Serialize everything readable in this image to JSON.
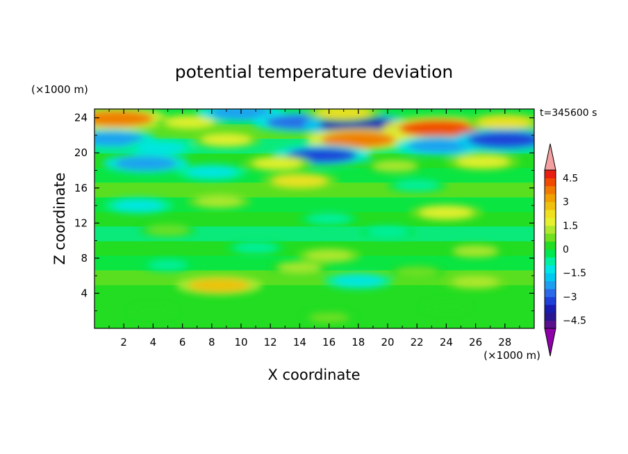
{
  "chart_data": {
    "type": "heatmap",
    "title": "potential temperature deviation",
    "xlabel": "X coordinate",
    "ylabel": "Z coordinate",
    "x_units": "(×1000 m)",
    "y_units": "(×1000 m)",
    "time_label": "t=345600 s",
    "xlim": [
      0,
      30
    ],
    "ylim": [
      0,
      25
    ],
    "x_ticks": [
      2,
      4,
      6,
      8,
      10,
      12,
      14,
      16,
      18,
      20,
      22,
      24,
      26,
      28
    ],
    "y_ticks": [
      4,
      8,
      12,
      16,
      20,
      24
    ],
    "colorbar": {
      "levels": [
        -5,
        -4.5,
        -4,
        -3.5,
        -3,
        -2.5,
        -2,
        -1.5,
        -1,
        -0.5,
        0,
        0.5,
        1,
        1.5,
        2,
        2.5,
        3,
        3.5,
        4,
        4.5,
        5
      ],
      "tick_labels": [
        "4.5",
        "3",
        "1.5",
        "0",
        "−1.5",
        "−3",
        "−4.5"
      ],
      "tick_values": [
        4.5,
        3,
        1.5,
        0,
        -1.5,
        -3,
        -4.5
      ],
      "colors": [
        "#5a0f8c",
        "#2a1690",
        "#1a1cb0",
        "#1e3fd8",
        "#2a6ae8",
        "#1e9ef0",
        "#00c8f0",
        "#00e6e6",
        "#00f0a0",
        "#00e850",
        "#22dd22",
        "#70e020",
        "#b0e830",
        "#e6f030",
        "#f0e020",
        "#f0c010",
        "#f0a000",
        "#f07a00",
        "#f04a00",
        "#e81e10"
      ],
      "under_color": "#8e00a8",
      "over_color": "#f4a0a0"
    },
    "features": [
      {
        "x": 1.5,
        "z": 23.9,
        "value": 3.5
      },
      {
        "x": 6.5,
        "z": 23.5,
        "value": 1.5
      },
      {
        "x": 10.0,
        "z": 24.6,
        "value": -2.5
      },
      {
        "x": 14.0,
        "z": 23.5,
        "value": -3.0
      },
      {
        "x": 18.0,
        "z": 23.2,
        "value": -3.8
      },
      {
        "x": 17.0,
        "z": 24.6,
        "value": 2.0
      },
      {
        "x": 23.5,
        "z": 22.8,
        "value": 4.0
      },
      {
        "x": 28.0,
        "z": 23.5,
        "value": 2.0
      },
      {
        "x": 1.2,
        "z": 21.6,
        "value": -2.5
      },
      {
        "x": 4.5,
        "z": 20.6,
        "value": -1.5
      },
      {
        "x": 9.0,
        "z": 21.5,
        "value": 1.5
      },
      {
        "x": 18.0,
        "z": 21.5,
        "value": 3.5
      },
      {
        "x": 15.5,
        "z": 19.7,
        "value": -3.2
      },
      {
        "x": 23.5,
        "z": 20.8,
        "value": -2.5
      },
      {
        "x": 28.0,
        "z": 21.5,
        "value": -3.5
      },
      {
        "x": 26.5,
        "z": 19.0,
        "value": 1.8
      },
      {
        "x": 3.5,
        "z": 18.8,
        "value": -2.5
      },
      {
        "x": 12.5,
        "z": 18.8,
        "value": 1.5
      },
      {
        "x": 8.0,
        "z": 17.8,
        "value": -1.5
      },
      {
        "x": 20.5,
        "z": 18.5,
        "value": 1.0
      },
      {
        "x": 14.0,
        "z": 16.8,
        "value": 2.0
      },
      {
        "x": 22.0,
        "z": 16.3,
        "value": -1.0
      },
      {
        "x": 8.5,
        "z": 14.5,
        "value": 1.2
      },
      {
        "x": 3.0,
        "z": 14.0,
        "value": -1.5
      },
      {
        "x": 24.0,
        "z": 13.2,
        "value": 1.8
      },
      {
        "x": 16.0,
        "z": 12.5,
        "value": -1.0
      },
      {
        "x": 5.0,
        "z": 11.2,
        "value": 0.8
      },
      {
        "x": 20.0,
        "z": 11.0,
        "value": -0.8
      },
      {
        "x": 11.0,
        "z": 9.2,
        "value": -1.0
      },
      {
        "x": 26.0,
        "z": 8.8,
        "value": 1.0
      },
      {
        "x": 16.0,
        "z": 8.3,
        "value": 1.2
      },
      {
        "x": 5.0,
        "z": 7.2,
        "value": -0.6
      },
      {
        "x": 14.0,
        "z": 6.9,
        "value": 1.0
      },
      {
        "x": 22.0,
        "z": 6.4,
        "value": 0.8
      },
      {
        "x": 18.0,
        "z": 5.4,
        "value": -1.5
      },
      {
        "x": 8.5,
        "z": 4.9,
        "value": 2.5
      },
      {
        "x": 26.0,
        "z": 5.3,
        "value": 1.2
      },
      {
        "x": 4.0,
        "z": 2.0,
        "value": 0.4
      },
      {
        "x": 16.0,
        "z": 1.2,
        "value": 0.6
      },
      {
        "x": 24.0,
        "z": 2.5,
        "value": 0.4
      }
    ]
  }
}
